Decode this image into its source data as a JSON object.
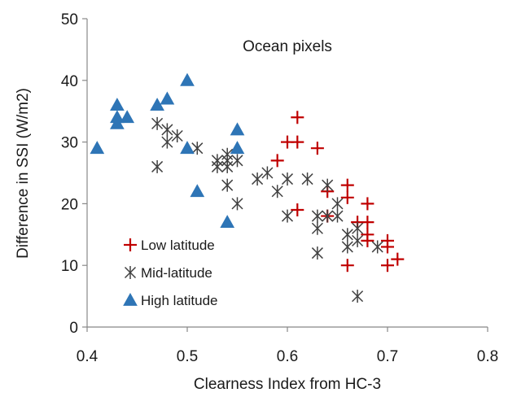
{
  "chart_data": {
    "type": "scatter",
    "xlabel": "Clearness Index from HC-3",
    "ylabel": "Difference in SSI (W/m2)",
    "annotation": "Ocean pixels",
    "xlim": [
      0.4,
      0.8
    ],
    "ylim": [
      0,
      50
    ],
    "x_ticks": [
      "0.4",
      "0.5",
      "0.6",
      "0.7",
      "0.8"
    ],
    "y_ticks": [
      "0",
      "10",
      "20",
      "30",
      "40",
      "50"
    ],
    "grid": false,
    "legend_position": "bottom-left",
    "series": [
      {
        "name": "Low latitude",
        "marker": "plus",
        "color": "#c00000",
        "x": [
          0.59,
          0.6,
          0.61,
          0.61,
          0.61,
          0.63,
          0.64,
          0.64,
          0.66,
          0.66,
          0.66,
          0.67,
          0.68,
          0.68,
          0.68,
          0.68,
          0.7,
          0.7,
          0.7,
          0.71
        ],
        "y": [
          27,
          30,
          34,
          30,
          19,
          29,
          22,
          18,
          23,
          21,
          10,
          17,
          20,
          17,
          15,
          14,
          14,
          13,
          10,
          11
        ]
      },
      {
        "name": "Mid-latitude",
        "marker": "asterisk",
        "color": "#404040",
        "x": [
          0.47,
          0.47,
          0.48,
          0.48,
          0.49,
          0.51,
          0.53,
          0.53,
          0.54,
          0.54,
          0.54,
          0.54,
          0.55,
          0.55,
          0.57,
          0.58,
          0.59,
          0.6,
          0.6,
          0.62,
          0.63,
          0.63,
          0.63,
          0.64,
          0.64,
          0.65,
          0.65,
          0.66,
          0.66,
          0.67,
          0.67,
          0.67,
          0.69
        ],
        "y": [
          33,
          26,
          32,
          30,
          31,
          29,
          27,
          26,
          28,
          27,
          26,
          23,
          27,
          20,
          24,
          25,
          22,
          24,
          18,
          24,
          18,
          16,
          12,
          23,
          18,
          20,
          18,
          15,
          13,
          16,
          14,
          5,
          13
        ]
      },
      {
        "name": "High latitude",
        "marker": "triangle",
        "color": "#2e75b6",
        "x": [
          0.41,
          0.43,
          0.43,
          0.43,
          0.44,
          0.47,
          0.48,
          0.5,
          0.5,
          0.51,
          0.54,
          0.55,
          0.55
        ],
        "y": [
          29,
          36,
          34,
          33,
          34,
          36,
          37,
          40,
          29,
          22,
          17,
          32,
          29
        ]
      }
    ]
  }
}
